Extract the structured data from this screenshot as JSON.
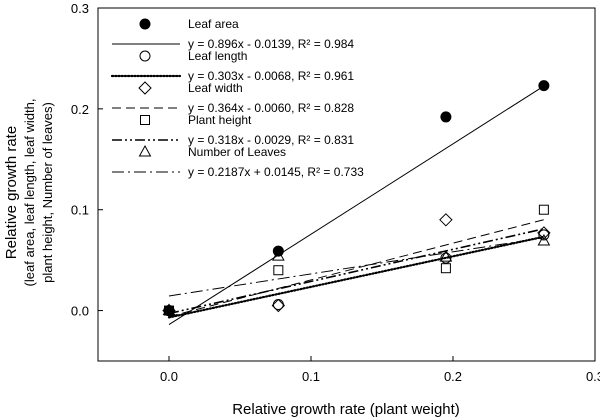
{
  "chart_data": {
    "type": "scatter",
    "title": "",
    "xlabel": "Relative growth rate (plant weight)",
    "ylabel_lines": [
      "Relative growth rate",
      "(leaf area, leaf length, leaf width,",
      "plant height, Number of leaves)"
    ],
    "xlim": [
      -0.05,
      0.3
    ],
    "ylim": [
      -0.05,
      0.3
    ],
    "xticks": [
      "0.0",
      "0.1",
      "0.2",
      "0.3"
    ],
    "yticks": [
      "0.0",
      "0.1",
      "0.2",
      "0.3"
    ],
    "xtick_values": [
      0.0,
      0.1,
      0.2,
      0.3
    ],
    "ytick_values": [
      0.0,
      0.1,
      0.2,
      0.3
    ],
    "grid": false,
    "legend_position": "top-left",
    "series": [
      {
        "name": "Leaf area",
        "marker": "filled-circle",
        "x": [
          0.0,
          0.077,
          0.195,
          0.264
        ],
        "y": [
          0.0,
          0.059,
          0.192,
          0.223
        ],
        "fit_label": "y = 0.896x - 0.0139, R² = 0.984",
        "fit_slope": 0.896,
        "fit_intercept": -0.0139,
        "fit_style": "solid"
      },
      {
        "name": "Leaf length",
        "marker": "open-circle",
        "x": [
          0.0,
          0.077,
          0.195,
          0.264
        ],
        "y": [
          0.0,
          0.006,
          0.052,
          0.075
        ],
        "fit_label": "y = 0.303x - 0.0068, R² = 0.961",
        "fit_slope": 0.303,
        "fit_intercept": -0.0068,
        "fit_style": "dotted"
      },
      {
        "name": "Leaf width",
        "marker": "open-diamond",
        "x": [
          0.0,
          0.077,
          0.195,
          0.264
        ],
        "y": [
          0.0,
          0.005,
          0.09,
          0.077
        ],
        "fit_label": "y = 0.364x - 0.0060, R² = 0.828",
        "fit_slope": 0.364,
        "fit_intercept": -0.006,
        "fit_style": "dashed"
      },
      {
        "name": "Plant height",
        "marker": "open-square",
        "x": [
          0.0,
          0.077,
          0.195,
          0.264
        ],
        "y": [
          0.0,
          0.04,
          0.042,
          0.1
        ],
        "fit_label": "y = 0.318x - 0.0029, R² = 0.831",
        "fit_slope": 0.318,
        "fit_intercept": -0.0029,
        "fit_style": "dash-dot-dot"
      },
      {
        "name": "Number of Leaves",
        "marker": "open-triangle",
        "x": [
          0.0,
          0.077,
          0.195,
          0.264
        ],
        "y": [
          0.0,
          0.054,
          0.053,
          0.069
        ],
        "fit_label": "y = 0.2187x + 0.0145, R² = 0.733",
        "fit_slope": 0.2187,
        "fit_intercept": 0.0145,
        "fit_style": "dash-dot"
      }
    ]
  }
}
